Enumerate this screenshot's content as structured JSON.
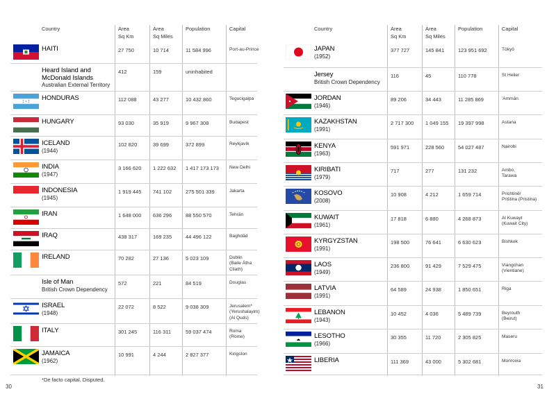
{
  "headers": {
    "country": "Country",
    "area_km": "Area\nSq Km",
    "area_mi": "Area\nSq Miles",
    "population": "Population",
    "capital": "Capital"
  },
  "left_page": {
    "page_number": "30",
    "footnote": "*De facto capital. Disputed.",
    "rows": [
      {
        "flag": "haiti-flag-icon",
        "name": "HAITI",
        "sub": "",
        "km": "27 750",
        "mi": "10 714",
        "pop": "11 584 996",
        "cap": "Port-au-Prince"
      },
      {
        "flag": "",
        "name": "Heard Island and McDonald Islands",
        "sub": "Australian External Territory",
        "km": "412",
        "mi": "159",
        "pop": "uninhabited",
        "cap": ""
      },
      {
        "flag": "honduras-flag-icon",
        "name": "HONDURAS",
        "sub": "",
        "km": "112 088",
        "mi": "43 277",
        "pop": "10 432 860",
        "cap": "Tegucigalpa"
      },
      {
        "flag": "hungary-flag-icon",
        "name": "HUNGARY",
        "sub": "",
        "km": "93 030",
        "mi": "35 919",
        "pop": "9 967 308",
        "cap": "Budapest"
      },
      {
        "flag": "iceland-flag-icon",
        "name": "ICELAND",
        "sub": "(1944)",
        "km": "102 820",
        "mi": "39 699",
        "pop": "372 899",
        "cap": "Reykjavík"
      },
      {
        "flag": "india-flag-icon",
        "name": "INDIA",
        "sub": "(1947)",
        "km": "3 166 620",
        "mi": "1 222 632",
        "pop": "1 417 173 173",
        "cap": "New Delhi"
      },
      {
        "flag": "indonesia-flag-icon",
        "name": "INDONESIA",
        "sub": "(1945)",
        "km": "1 919 445",
        "mi": "741 102",
        "pop": "275 501 339",
        "cap": "Jakarta"
      },
      {
        "flag": "iran-flag-icon",
        "name": "IRAN",
        "sub": "",
        "km": "1 648 000",
        "mi": "636 296",
        "pop": "88 550 570",
        "cap": "Tehrān"
      },
      {
        "flag": "iraq-flag-icon",
        "name": "IRAQ",
        "sub": "",
        "km": "438 317",
        "mi": "169 235",
        "pop": "44 496 122",
        "cap": "Baghdād"
      },
      {
        "flag": "ireland-flag-icon",
        "name": "IRELAND",
        "sub": "",
        "km": "70 282",
        "mi": "27 136",
        "pop": "5 023 109",
        "cap": "Dublin\n(Baile Átha\nCliath)"
      },
      {
        "flag": "",
        "name": "Isle of Man",
        "sub": "British Crown Dependency",
        "km": "572",
        "mi": "221",
        "pop": "84 519",
        "cap": "Douglas"
      },
      {
        "flag": "israel-flag-icon",
        "name": "ISRAEL",
        "sub": "(1948)",
        "km": "22 072",
        "mi": "8 522",
        "pop": "9 038 309",
        "cap": "Jerusalem*\n(Yerushalayim)\n(Al Quds)"
      },
      {
        "flag": "italy-flag-icon",
        "name": "ITALY",
        "sub": "",
        "km": "301 245",
        "mi": "116 311",
        "pop": "59 037 474",
        "cap": "Roma\n(Rome)"
      },
      {
        "flag": "jamaica-flag-icon",
        "name": "JAMAICA",
        "sub": "(1962)",
        "km": "10 991",
        "mi": "4 244",
        "pop": "2 827 377",
        "cap": "Kingston"
      }
    ]
  },
  "right_page": {
    "page_number": "31",
    "rows": [
      {
        "flag": "japan-flag-icon",
        "name": "JAPAN",
        "sub": "(1952)",
        "km": "377 727",
        "mi": "145 841",
        "pop": "123 951 692",
        "cap": "Tōkyō"
      },
      {
        "flag": "",
        "name": "Jersey",
        "sub": "British Crown Dependency",
        "km": "116",
        "mi": "45",
        "pop": "110 778",
        "cap": "St Helier"
      },
      {
        "flag": "jordan-flag-icon",
        "name": "JORDAN",
        "sub": "(1946)",
        "km": "89 206",
        "mi": "34 443",
        "pop": "11 285 869",
        "cap": "'Ammān"
      },
      {
        "flag": "kazakhstan-flag-icon",
        "name": "KAZAKHSTAN",
        "sub": "(1991)",
        "km": "2 717 300",
        "mi": "1 049 155",
        "pop": "19 397 998",
        "cap": "Astana"
      },
      {
        "flag": "kenya-flag-icon",
        "name": "KENYA",
        "sub": "(1963)",
        "km": "591 971",
        "mi": "228 560",
        "pop": "54 027 487",
        "cap": "Nairobi"
      },
      {
        "flag": "kiribati-flag-icon",
        "name": "KIRIBATI",
        "sub": "(1979)",
        "km": "717",
        "mi": "277",
        "pop": "131 232",
        "cap": "Ambo,\nTarawa"
      },
      {
        "flag": "kosovo-flag-icon",
        "name": "KOSOVO",
        "sub": "(2008)",
        "km": "10 908",
        "mi": "4 212",
        "pop": "1 659 714",
        "cap": "Prishtinë/\nPriština (Pristina)"
      },
      {
        "flag": "kuwait-flag-icon",
        "name": "KUWAIT",
        "sub": "(1961)",
        "km": "17 818",
        "mi": "6 880",
        "pop": "4 268 873",
        "cap": "Al Kuwayt\n(Kuwait City)"
      },
      {
        "flag": "kyrgyzstan-flag-icon",
        "name": "KYRGYZSTAN",
        "sub": "(1991)",
        "km": "198 500",
        "mi": "76 641",
        "pop": "6 630 623",
        "cap": "Bishkek"
      },
      {
        "flag": "laos-flag-icon",
        "name": "LAOS",
        "sub": "(1949)",
        "km": "236 800",
        "mi": "91 429",
        "pop": "7 529 475",
        "cap": "Viangchan\n(Vientiane)"
      },
      {
        "flag": "latvia-flag-icon",
        "name": "LATVIA",
        "sub": "(1991)",
        "km": "64 589",
        "mi": "24 938",
        "pop": "1 850 651",
        "cap": "Riga"
      },
      {
        "flag": "lebanon-flag-icon",
        "name": "LEBANON",
        "sub": "(1943)",
        "km": "10 452",
        "mi": "4 036",
        "pop": "5 489 739",
        "cap": "Beyrouth\n(Beirut)"
      },
      {
        "flag": "lesotho-flag-icon",
        "name": "LESOTHO",
        "sub": "(1966)",
        "km": "30 355",
        "mi": "11 720",
        "pop": "2 305 825",
        "cap": "Maseru"
      },
      {
        "flag": "liberia-flag-icon",
        "name": "LIBERIA",
        "sub": "",
        "km": "111 369",
        "mi": "43 000",
        "pop": "5 302 681",
        "cap": "Monrovia"
      }
    ]
  }
}
